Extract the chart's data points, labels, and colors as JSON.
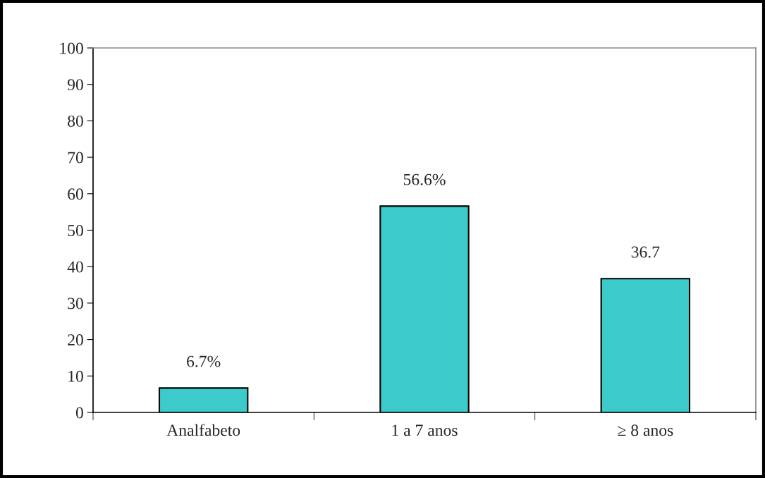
{
  "chart_data": {
    "type": "bar",
    "categories": [
      "Analfabeto",
      "1 a 7 anos",
      "≥ 8 anos"
    ],
    "values": [
      6.7,
      56.6,
      36.7
    ],
    "value_labels": [
      "6.7%",
      "56.6%",
      "36.7"
    ],
    "color": "#3ccaca",
    "ylim": [
      0,
      100
    ],
    "yticks": [
      0,
      10,
      20,
      30,
      40,
      50,
      60,
      70,
      80,
      90,
      100
    ],
    "grid": false,
    "legend": false
  }
}
